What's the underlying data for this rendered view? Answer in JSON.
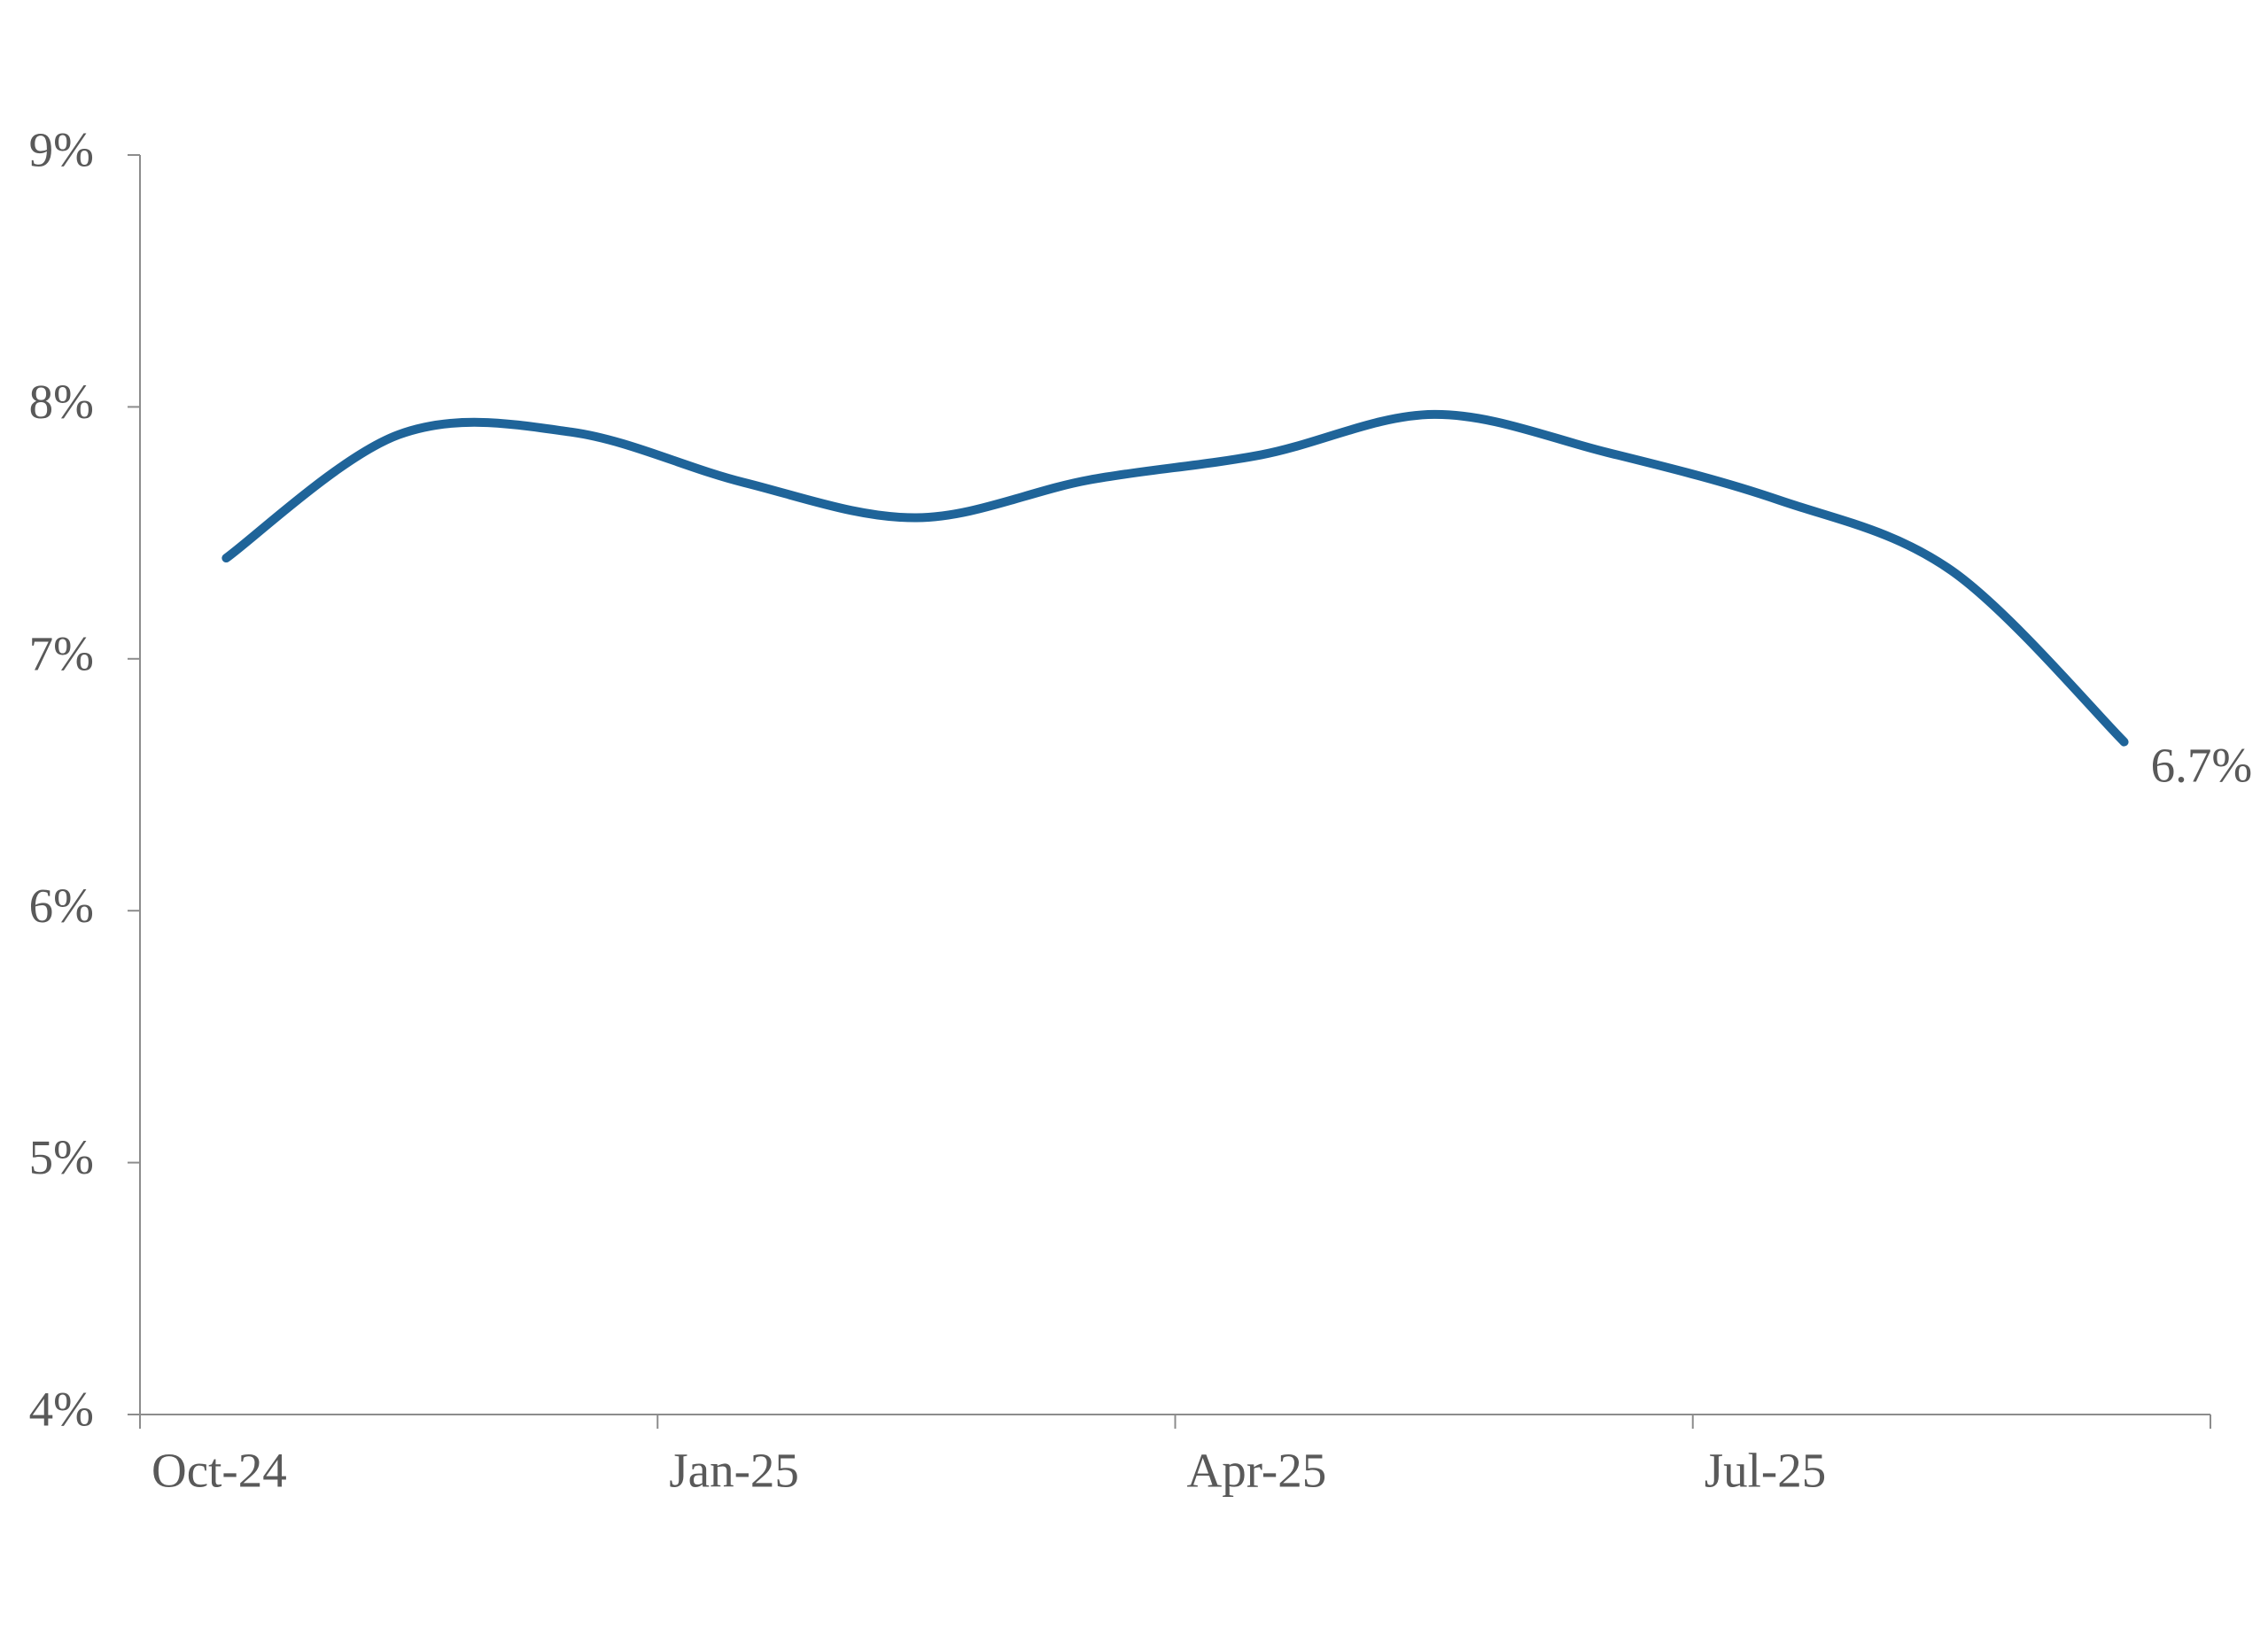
{
  "chart_data": {
    "type": "line",
    "categories": [
      "Oct-24",
      null,
      null,
      "Jan-25",
      null,
      null,
      "Apr-25",
      null,
      null,
      "Jul-25",
      null,
      null
    ],
    "series": [
      {
        "color": "#1f6499",
        "values": [
          7.4,
          7.89,
          7.9,
          7.7,
          7.56,
          7.71,
          7.81,
          7.97,
          7.82,
          7.63,
          7.35,
          6.67
        ],
        "value_labels": [
          null,
          null,
          null,
          null,
          null,
          null,
          null,
          null,
          null,
          null,
          null,
          "6.7%"
        ]
      }
    ],
    "ylim": [
      4,
      9
    ],
    "yticks": [
      {
        "value": 4,
        "label": "4%"
      },
      {
        "value": 5,
        "label": "5%"
      },
      {
        "value": 6,
        "label": "6%"
      },
      {
        "value": 7,
        "label": "7%"
      },
      {
        "value": 8,
        "label": "8%"
      },
      {
        "value": 9,
        "label": "9%"
      }
    ],
    "grid": false
  }
}
